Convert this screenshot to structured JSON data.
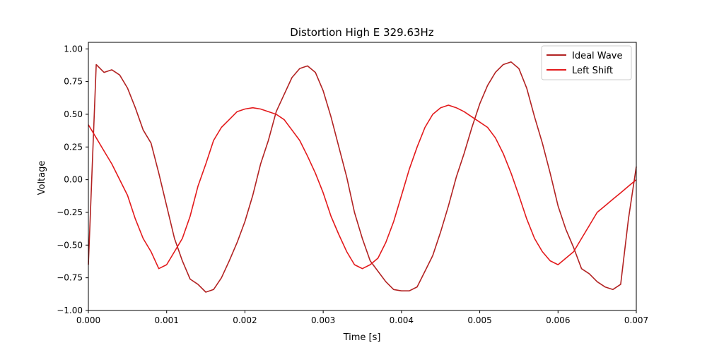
{
  "chart_data": {
    "type": "line",
    "title": "Distortion High E 329.63Hz",
    "xlabel": "Time [s]",
    "ylabel": "Voltage",
    "xlim": [
      0.0,
      0.007
    ],
    "ylim": [
      -1.0,
      1.05
    ],
    "x_ticks": [
      0.0,
      0.001,
      0.002,
      0.003,
      0.004,
      0.005,
      0.006,
      0.007
    ],
    "x_tick_labels": [
      "0.000",
      "0.001",
      "0.002",
      "0.003",
      "0.004",
      "0.005",
      "0.006",
      "0.007"
    ],
    "y_ticks": [
      -1.0,
      -0.75,
      -0.5,
      -0.25,
      0.0,
      0.25,
      0.5,
      0.75,
      1.0
    ],
    "y_tick_labels": [
      "−1.00",
      "−0.75",
      "−0.50",
      "−0.25",
      "0.00",
      "0.25",
      "0.50",
      "0.75",
      "1.00"
    ],
    "grid": false,
    "legend_position": "top-right",
    "series": [
      {
        "name": "Ideal Wave",
        "color": "#b22222",
        "x": [
          0.0,
          0.0001,
          0.0002,
          0.0003,
          0.0004,
          0.0005,
          0.0006,
          0.0007,
          0.0008,
          0.0009,
          0.001,
          0.0011,
          0.0012,
          0.0013,
          0.0014,
          0.0015,
          0.0016,
          0.0017,
          0.0018,
          0.0019,
          0.002,
          0.0021,
          0.0022,
          0.0023,
          0.0024,
          0.0025,
          0.0026,
          0.0027,
          0.0028,
          0.0029,
          0.003,
          0.0031,
          0.0032,
          0.0033,
          0.0034,
          0.0035,
          0.0036,
          0.0037,
          0.0038,
          0.0039,
          0.004,
          0.0041,
          0.0042,
          0.0043,
          0.0044,
          0.0045,
          0.0046,
          0.0047,
          0.0048,
          0.0049,
          0.005,
          0.0051,
          0.0052,
          0.0053,
          0.0054,
          0.0055,
          0.0056,
          0.0057,
          0.0058,
          0.0059,
          0.006,
          0.0061,
          0.0062,
          0.0063,
          0.0064,
          0.0065,
          0.0066,
          0.0067,
          0.0068,
          0.0069,
          0.007
        ],
        "values": [
          -0.65,
          0.88,
          0.82,
          0.84,
          0.8,
          0.7,
          0.55,
          0.38,
          0.28,
          0.05,
          -0.2,
          -0.45,
          -0.62,
          -0.76,
          -0.8,
          -0.86,
          -0.84,
          -0.75,
          -0.62,
          -0.48,
          -0.32,
          -0.12,
          0.12,
          0.3,
          0.52,
          0.65,
          0.78,
          0.85,
          0.87,
          0.82,
          0.68,
          0.48,
          0.25,
          0.02,
          -0.25,
          -0.45,
          -0.62,
          -0.7,
          -0.78,
          -0.84,
          -0.85,
          -0.85,
          -0.82,
          -0.7,
          -0.58,
          -0.4,
          -0.2,
          0.02,
          0.2,
          0.4,
          0.58,
          0.72,
          0.82,
          0.88,
          0.9,
          0.85,
          0.7,
          0.48,
          0.28,
          0.05,
          -0.2,
          -0.38,
          -0.52,
          -0.68,
          -0.72,
          -0.78,
          -0.82,
          -0.84,
          -0.8,
          -0.3,
          0.1
        ]
      },
      {
        "name": "Left Shift",
        "color": "#e31a1c",
        "x": [
          0.0,
          0.0001,
          0.0002,
          0.0003,
          0.0004,
          0.0005,
          0.0006,
          0.0007,
          0.0008,
          0.0009,
          0.001,
          0.0011,
          0.0012,
          0.0013,
          0.0014,
          0.0015,
          0.0016,
          0.0017,
          0.0018,
          0.0019,
          0.002,
          0.0021,
          0.0022,
          0.0023,
          0.0024,
          0.0025,
          0.0026,
          0.0027,
          0.0028,
          0.0029,
          0.003,
          0.0031,
          0.0032,
          0.0033,
          0.0034,
          0.0035,
          0.0036,
          0.0037,
          0.0038,
          0.0039,
          0.004,
          0.0041,
          0.0042,
          0.0043,
          0.0044,
          0.0045,
          0.0046,
          0.0047,
          0.0048,
          0.0049,
          0.005,
          0.0051,
          0.0052,
          0.0053,
          0.0054,
          0.0055,
          0.0056,
          0.0057,
          0.0058,
          0.0059,
          0.006,
          0.0061,
          0.0062,
          0.0063,
          0.0064,
          0.0065,
          0.0066,
          0.0067,
          0.0068,
          0.0069,
          0.007
        ],
        "values": [
          0.42,
          0.32,
          0.22,
          0.12,
          0.0,
          -0.12,
          -0.3,
          -0.45,
          -0.55,
          -0.68,
          -0.65,
          -0.55,
          -0.45,
          -0.28,
          -0.05,
          0.12,
          0.3,
          0.4,
          0.46,
          0.52,
          0.54,
          0.55,
          0.54,
          0.52,
          0.5,
          0.46,
          0.38,
          0.3,
          0.18,
          0.05,
          -0.1,
          -0.28,
          -0.42,
          -0.55,
          -0.65,
          -0.68,
          -0.65,
          -0.6,
          -0.48,
          -0.32,
          -0.12,
          0.08,
          0.25,
          0.4,
          0.5,
          0.55,
          0.57,
          0.55,
          0.52,
          0.48,
          0.44,
          0.4,
          0.32,
          0.2,
          0.05,
          -0.12,
          -0.3,
          -0.45,
          -0.55,
          -0.62,
          -0.65,
          -0.6,
          -0.55,
          -0.45,
          -0.35,
          -0.25,
          -0.2,
          -0.15,
          -0.1,
          -0.05,
          0.0
        ]
      }
    ]
  }
}
